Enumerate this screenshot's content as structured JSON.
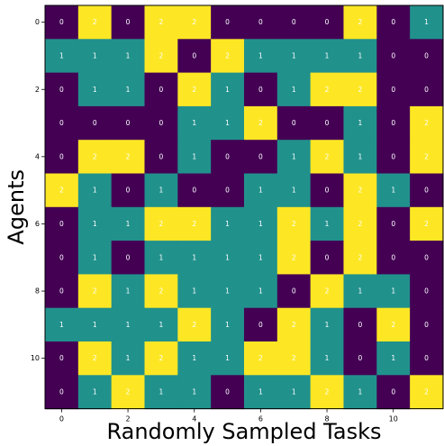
{
  "chart_data": {
    "type": "heatmap",
    "title": "",
    "xlabel": "Randomly Sampled Tasks",
    "ylabel": "Agents",
    "x_ticks": [
      0,
      2,
      4,
      6,
      8,
      10
    ],
    "y_ticks": [
      0,
      2,
      4,
      6,
      8,
      10
    ],
    "colors": {
      "0": "#440154",
      "1": "#21918c",
      "2": "#fde725"
    },
    "text_colors": {
      "0": "#ffffff",
      "1": "#ffffff",
      "2": "#ffffff"
    },
    "grid": false,
    "values": [
      [
        0,
        2,
        0,
        2,
        2,
        0,
        0,
        0,
        0,
        2,
        0,
        1
      ],
      [
        1,
        1,
        1,
        2,
        0,
        2,
        1,
        1,
        1,
        1,
        0,
        0
      ],
      [
        0,
        1,
        1,
        0,
        2,
        1,
        0,
        1,
        2,
        2,
        0,
        0
      ],
      [
        0,
        0,
        0,
        0,
        1,
        1,
        2,
        0,
        0,
        1,
        0,
        2
      ],
      [
        0,
        2,
        2,
        0,
        1,
        0,
        0,
        1,
        2,
        1,
        0,
        2
      ],
      [
        2,
        1,
        0,
        1,
        0,
        0,
        1,
        1,
        0,
        2,
        1,
        0
      ],
      [
        0,
        1,
        1,
        2,
        2,
        1,
        1,
        2,
        1,
        2,
        0,
        2
      ],
      [
        0,
        1,
        0,
        1,
        1,
        1,
        1,
        2,
        0,
        2,
        0,
        0
      ],
      [
        0,
        2,
        1,
        2,
        1,
        1,
        1,
        0,
        2,
        1,
        1,
        0
      ],
      [
        1,
        1,
        1,
        1,
        2,
        1,
        0,
        2,
        1,
        0,
        2,
        0
      ],
      [
        0,
        2,
        1,
        2,
        1,
        1,
        2,
        2,
        1,
        0,
        1,
        0
      ],
      [
        0,
        1,
        2,
        1,
        1,
        0,
        1,
        1,
        2,
        1,
        0,
        2
      ]
    ]
  }
}
